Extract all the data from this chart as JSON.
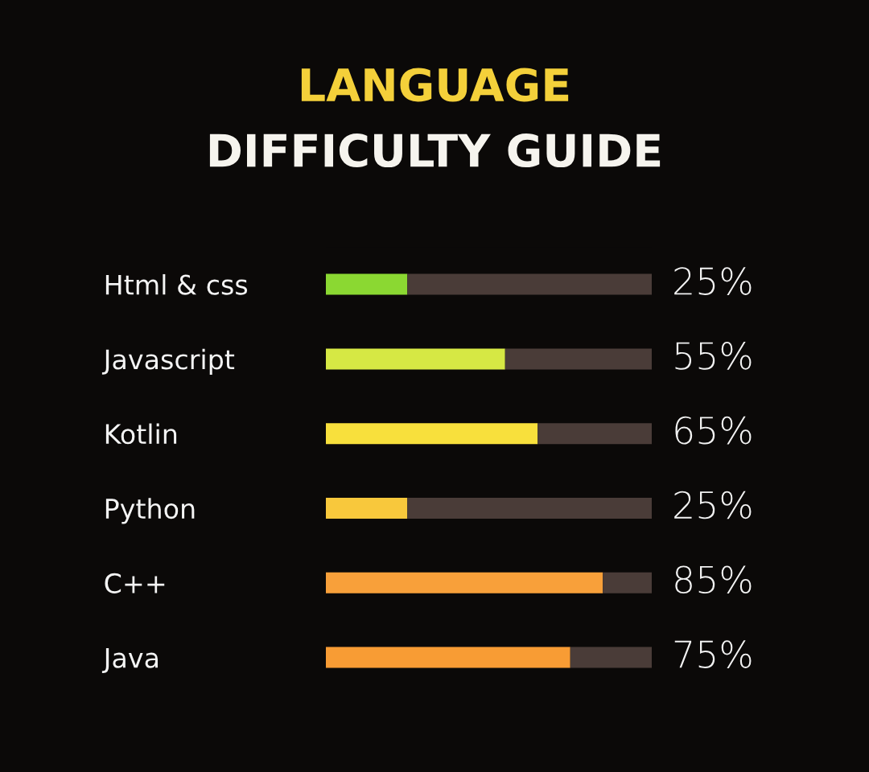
{
  "chart_data": {
    "type": "bar",
    "orientation": "horizontal",
    "stacked": true,
    "title": "LANGUAGE",
    "subtitle": "DIFFICULTY GUIDE",
    "categories": [
      "Html & css",
      "Javascript",
      "Kotlin",
      "Python",
      "C++",
      "Java"
    ],
    "series": [
      {
        "values": [
          25,
          55,
          65,
          25,
          85,
          75
        ],
        "colors": [
          "#8bd832",
          "#d6e844",
          "#f8e03c",
          "#f8c83c",
          "#f8a03a",
          "#f89c34"
        ],
        "value_labels": [
          "25%",
          "55%",
          "65%",
          "25%",
          "85%",
          "75%"
        ]
      },
      {
        "values": [
          75,
          45,
          35,
          75,
          15,
          25
        ],
        "color": "#4a3c38"
      }
    ],
    "xlim": [
      0,
      100
    ],
    "tick_labels": "y",
    "grid": false,
    "legend": false
  }
}
